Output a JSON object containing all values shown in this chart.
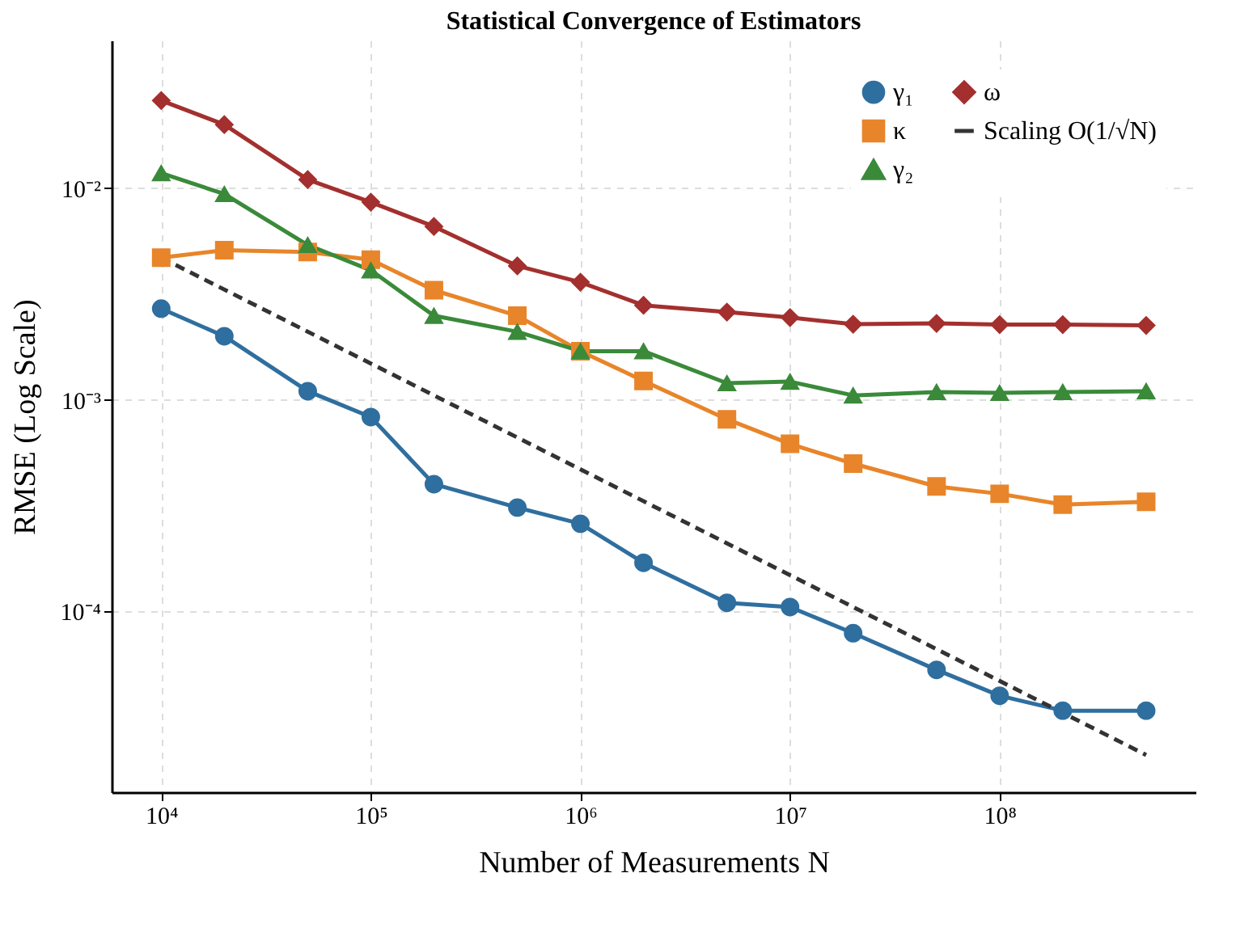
{
  "chart_data": {
    "type": "line",
    "title": "Statistical Convergence of Estimators",
    "xlabel": "Number of Measurements N",
    "ylabel": "RMSE (Log Scale)",
    "log": "xy",
    "grid": true,
    "legend": "top right",
    "x": [
      10000,
      20000,
      50000,
      100000,
      200000,
      500000,
      1000000,
      2000000,
      5000000,
      10000000,
      20000000,
      50000000,
      100000000,
      200000000,
      500000000
    ],
    "xlim": [
      5800,
      860000000
    ],
    "xticks": [
      {
        "value": 10000,
        "label": "10⁴"
      },
      {
        "value": 100000,
        "label": "10⁵"
      },
      {
        "value": 1000000,
        "label": "10⁶"
      },
      {
        "value": 10000000,
        "label": "10⁷"
      },
      {
        "value": 100000000,
        "label": "10⁸"
      }
    ],
    "ylim": [
      1.4e-05,
      0.05
    ],
    "yticks": [
      {
        "value": 0.0001,
        "label": "10⁻⁴"
      },
      {
        "value": 0.001,
        "label": "10⁻³"
      },
      {
        "value": 0.01,
        "label": "10⁻²"
      }
    ],
    "series": [
      {
        "name": "γ₁",
        "color": "#2f6f9f",
        "marker": "circle",
        "values": [
          0.0027,
          0.002,
          0.0011,
          0.00083,
          0.0004,
          0.00031,
          0.00026,
          0.00017,
          0.00011,
          0.000105,
          7.9e-05,
          5.3e-05,
          4e-05,
          3.4e-05,
          3.4e-05
        ]
      },
      {
        "name": "κ",
        "color": "#e8852a",
        "marker": "square",
        "values": [
          0.0047,
          0.0051,
          0.005,
          0.0046,
          0.0033,
          0.0025,
          0.0017,
          0.00123,
          0.00081,
          0.00062,
          0.0005,
          0.00039,
          0.00036,
          0.00032,
          0.00033
        ]
      },
      {
        "name": "γ₂",
        "color": "#3a8a3a",
        "marker": "triangle",
        "values": [
          0.0118,
          0.0094,
          0.0054,
          0.0041,
          0.0025,
          0.0021,
          0.0017,
          0.0017,
          0.0012,
          0.00122,
          0.00105,
          0.00109,
          0.00108,
          0.00109,
          0.0011
        ]
      },
      {
        "name": "ω",
        "color": "#a3302e",
        "marker": "diamond",
        "values": [
          0.026,
          0.02,
          0.011,
          0.0086,
          0.0066,
          0.0043,
          0.0036,
          0.0028,
          0.0026,
          0.00245,
          0.00228,
          0.0023,
          0.00227,
          0.00227,
          0.00225
        ]
      },
      {
        "name": "Scaling O(1/√N)",
        "color": "#333333",
        "marker": "none",
        "line_style": "dashed",
        "x": [
          10000,
          500000000
        ],
        "values": [
          0.0047,
          2.1e-05
        ]
      }
    ]
  }
}
